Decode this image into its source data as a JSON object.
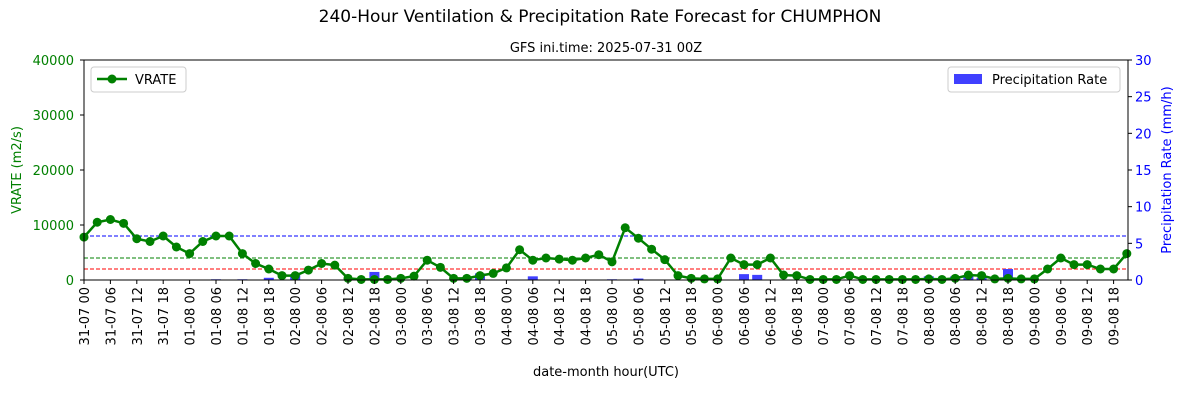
{
  "chart_data": {
    "type": "line+bar",
    "title": "240-Hour Ventilation & Precipitation Rate Forecast for CHUMPHON",
    "subtitle": "GFS ini.time: 2025-07-31 00Z",
    "xlabel": "date-month hour(UTC)",
    "ylabel_left": "VRATE (m2/s)",
    "ylabel_right": "Precipitation Rate (mm/h)",
    "ylim_left": [
      0,
      40000
    ],
    "ylim_right": [
      0,
      30
    ],
    "yticks_left": [
      "0",
      "10000",
      "20000",
      "30000",
      "40000"
    ],
    "yticks_right": [
      "0",
      "5",
      "10",
      "15",
      "20",
      "25",
      "30"
    ],
    "categories": [
      "31-07 00",
      "31-07 03",
      "31-07 06",
      "31-07 09",
      "31-07 12",
      "31-07 15",
      "31-07 18",
      "31-07 21",
      "01-08 00",
      "01-08 03",
      "01-08 06",
      "01-08 09",
      "01-08 12",
      "01-08 15",
      "01-08 18",
      "01-08 21",
      "02-08 00",
      "02-08 03",
      "02-08 06",
      "02-08 09",
      "02-08 12",
      "02-08 15",
      "02-08 18",
      "02-08 21",
      "03-08 00",
      "03-08 03",
      "03-08 06",
      "03-08 09",
      "03-08 12",
      "03-08 15",
      "03-08 18",
      "03-08 21",
      "04-08 00",
      "04-08 03",
      "04-08 06",
      "04-08 09",
      "04-08 12",
      "04-08 15",
      "04-08 18",
      "04-08 21",
      "05-08 00",
      "05-08 03",
      "05-08 06",
      "05-08 09",
      "05-08 12",
      "05-08 15",
      "05-08 18",
      "05-08 21",
      "06-08 00",
      "06-08 03",
      "06-08 06",
      "06-08 09",
      "06-08 12",
      "06-08 15",
      "06-08 18",
      "06-08 21",
      "07-08 00",
      "07-08 03",
      "07-08 06",
      "07-08 09",
      "07-08 12",
      "07-08 15",
      "07-08 18",
      "07-08 21",
      "08-08 00",
      "08-08 03",
      "08-08 06",
      "08-08 09",
      "08-08 12",
      "08-08 15",
      "08-08 18",
      "08-08 21",
      "09-08 00",
      "09-08 03",
      "09-08 06",
      "09-08 09",
      "09-08 12",
      "09-08 15",
      "09-08 18",
      "09-08 21"
    ],
    "tick_labels_every": 2,
    "series": [
      {
        "name": "VRATE",
        "axis": "left",
        "kind": "line",
        "color": "#008000",
        "values": [
          7800,
          10500,
          11000,
          10300,
          7500,
          7000,
          8000,
          6000,
          4800,
          7000,
          8000,
          8000,
          4800,
          3000,
          2000,
          800,
          800,
          1800,
          3000,
          2700,
          300,
          100,
          100,
          100,
          300,
          700,
          3600,
          2300,
          300,
          300,
          800,
          1200,
          2200,
          5500,
          3600,
          4000,
          3800,
          3600,
          4000,
          4600,
          3300,
          9500,
          7600,
          5600,
          3700,
          800,
          300,
          200,
          200,
          4000,
          2800,
          2800,
          4000,
          900,
          800,
          100,
          100,
          100,
          800,
          100,
          100,
          100,
          100,
          100,
          200,
          100,
          300,
          900,
          800,
          200,
          300,
          200,
          200,
          2000,
          4000,
          2800,
          2800,
          2000,
          2000,
          4800
        ]
      },
      {
        "name": "Precipitation Rate",
        "axis": "right",
        "kind": "bar",
        "color": "#4040ff",
        "values": [
          0,
          0,
          0,
          0,
          0,
          0,
          0,
          0,
          0,
          0,
          0.1,
          0,
          0.1,
          0,
          0.3,
          0,
          0.8,
          0,
          0,
          0,
          0,
          0,
          1.1,
          0,
          0,
          0,
          0,
          0,
          0,
          0.4,
          0.9,
          0,
          0,
          0,
          0.5,
          0,
          0,
          0,
          0,
          0,
          0.1,
          0,
          0.2,
          0,
          0,
          0,
          0,
          0,
          0,
          0,
          0.8,
          0.7,
          0,
          0,
          0,
          0,
          0,
          0,
          0,
          0,
          0,
          0,
          0,
          0,
          0.5,
          0,
          0.5,
          0.6,
          0.3,
          0,
          1.5,
          0,
          0,
          0,
          0,
          0,
          0,
          0,
          0,
          0
        ]
      }
    ],
    "reference_lines": [
      {
        "value": 2000,
        "axis": "left",
        "color": "#ff0000",
        "style": "dashed"
      },
      {
        "value": 4000,
        "axis": "left",
        "color": "#008000",
        "style": "dashed"
      },
      {
        "value": 8000,
        "axis": "left",
        "color": "#0000ff",
        "style": "dashed"
      }
    ],
    "legend": [
      {
        "label": "VRATE",
        "placement": "top-left"
      },
      {
        "label": "Precipitation Rate",
        "placement": "top-right"
      }
    ],
    "grid": false
  }
}
